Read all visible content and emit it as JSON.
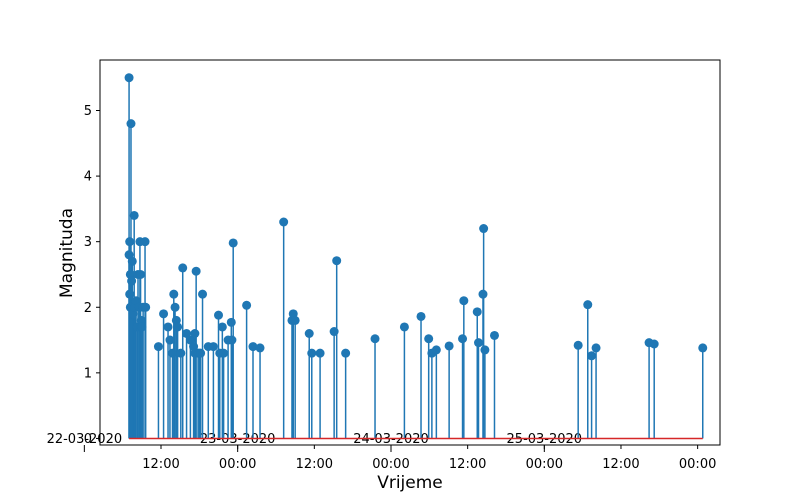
{
  "chart_data": {
    "type": "stem",
    "title": "",
    "xlabel": "Vrijeme",
    "ylabel": "Magnituda",
    "x_unit": "hours since 22-03-2020 00:00",
    "xlim": [
      2.45,
      99.5
    ],
    "ylim": [
      -0.1,
      5.77
    ],
    "yticks": [
      0,
      1,
      2,
      3,
      4,
      5
    ],
    "xticks_major": [
      {
        "x": 0,
        "label": "22-03-2020"
      },
      {
        "x": 24,
        "label": "23-03-2020"
      },
      {
        "x": 48,
        "label": "24-03-2020"
      },
      {
        "x": 72,
        "label": "25-03-2020"
      }
    ],
    "xticks_minor": [
      {
        "x": 12,
        "label": "12:00"
      },
      {
        "x": 24,
        "label": "00:00"
      },
      {
        "x": 36,
        "label": "12:00"
      },
      {
        "x": 48,
        "label": "00:00"
      },
      {
        "x": 60,
        "label": "12:00"
      },
      {
        "x": 72,
        "label": "00:00"
      },
      {
        "x": 84,
        "label": "12:00"
      },
      {
        "x": 96,
        "label": "00:00"
      }
    ],
    "colors": {
      "stem": "#1f77b4",
      "baseline": "#d62728"
    },
    "series": [
      {
        "name": "",
        "points": [
          [
            7.0,
            5.5
          ],
          [
            7.3,
            4.8
          ],
          [
            7.0,
            2.8
          ],
          [
            7.1,
            3.0
          ],
          [
            7.2,
            2.5
          ],
          [
            7.1,
            2.2
          ],
          [
            7.2,
            2.0
          ],
          [
            7.5,
            2.7
          ],
          [
            7.4,
            2.4
          ],
          [
            7.6,
            1.9
          ],
          [
            7.8,
            3.4
          ],
          [
            7.9,
            2.0
          ],
          [
            8.1,
            2.1
          ],
          [
            8.3,
            1.7
          ],
          [
            8.4,
            2.5
          ],
          [
            8.7,
            3.0
          ],
          [
            8.8,
            2.5
          ],
          [
            8.6,
            2.0
          ],
          [
            8.9,
            1.8
          ],
          [
            9.0,
            1.7
          ],
          [
            9.2,
            2.0
          ],
          [
            9.5,
            3.0
          ],
          [
            9.6,
            2.0
          ],
          [
            11.6,
            1.4
          ],
          [
            12.4,
            1.9
          ],
          [
            13.1,
            1.7
          ],
          [
            13.4,
            1.5
          ],
          [
            13.8,
            1.3
          ],
          [
            14.0,
            2.2
          ],
          [
            14.2,
            2.0
          ],
          [
            14.4,
            1.8
          ],
          [
            14.6,
            1.7
          ],
          [
            15.1,
            1.3
          ],
          [
            15.4,
            2.6
          ],
          [
            16.0,
            1.6
          ],
          [
            16.6,
            1.5
          ],
          [
            17.1,
            1.4
          ],
          [
            17.3,
            1.3
          ],
          [
            17.5,
            2.55
          ],
          [
            17.3,
            1.6
          ],
          [
            17.8,
            1.3
          ],
          [
            18.0,
            1.3
          ],
          [
            18.2,
            1.3
          ],
          [
            18.5,
            2.2
          ],
          [
            19.4,
            1.4
          ],
          [
            20.2,
            1.4
          ],
          [
            21.0,
            1.88
          ],
          [
            21.2,
            1.3
          ],
          [
            21.6,
            1.7
          ],
          [
            21.8,
            1.3
          ],
          [
            22.5,
            1.5
          ],
          [
            23.0,
            1.77
          ],
          [
            23.3,
            2.98
          ],
          [
            23.1,
            1.5
          ],
          [
            25.4,
            2.03
          ],
          [
            26.4,
            1.4
          ],
          [
            27.5,
            1.38
          ],
          [
            31.2,
            3.3
          ],
          [
            32.5,
            1.8
          ],
          [
            32.7,
            1.9
          ],
          [
            33.0,
            1.8
          ],
          [
            35.2,
            1.6
          ],
          [
            35.6,
            1.3
          ],
          [
            36.9,
            1.3
          ],
          [
            39.1,
            1.63
          ],
          [
            39.5,
            2.71
          ],
          [
            40.9,
            1.3
          ],
          [
            45.5,
            1.52
          ],
          [
            50.1,
            1.7
          ],
          [
            52.7,
            1.86
          ],
          [
            53.9,
            1.52
          ],
          [
            54.4,
            1.3
          ],
          [
            55.1,
            1.35
          ],
          [
            57.1,
            1.41
          ],
          [
            59.2,
            1.52
          ],
          [
            59.4,
            2.1
          ],
          [
            61.5,
            1.93
          ],
          [
            61.7,
            1.46
          ],
          [
            62.4,
            2.2
          ],
          [
            62.5,
            3.2
          ],
          [
            62.7,
            1.35
          ],
          [
            64.2,
            1.57
          ],
          [
            77.3,
            1.42
          ],
          [
            78.8,
            2.04
          ],
          [
            79.4,
            1.26
          ],
          [
            80.1,
            1.38
          ],
          [
            88.4,
            1.46
          ],
          [
            89.2,
            1.44
          ],
          [
            96.8,
            1.38
          ]
        ]
      }
    ]
  }
}
